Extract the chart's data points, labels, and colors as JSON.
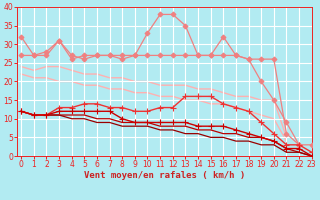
{
  "xlabel": "Vent moyen/en rafales ( km/h )",
  "background_color": "#b2ebf2",
  "grid_color": "#ffffff",
  "x": [
    0,
    1,
    2,
    3,
    4,
    5,
    6,
    7,
    8,
    9,
    10,
    11,
    12,
    13,
    14,
    15,
    16,
    17,
    18,
    19,
    20,
    21,
    22,
    23
  ],
  "lines": [
    {
      "y": [
        32,
        27,
        27,
        31,
        26,
        27,
        27,
        27,
        26,
        27,
        33,
        38,
        38,
        35,
        27,
        27,
        32,
        27,
        26,
        20,
        15,
        9,
        3,
        3
      ],
      "color": "#f08080",
      "lw": 0.9,
      "marker": "D",
      "ms": 2.5,
      "zorder": 3
    },
    {
      "y": [
        27,
        27,
        28,
        31,
        27,
        26,
        27,
        27,
        27,
        27,
        27,
        27,
        27,
        27,
        27,
        27,
        27,
        27,
        26,
        26,
        26,
        6,
        3,
        null
      ],
      "color": "#f08080",
      "lw": 0.9,
      "marker": "D",
      "ms": 2.5,
      "zorder": 3
    },
    {
      "y": [
        24,
        23,
        24,
        24,
        23,
        22,
        22,
        21,
        21,
        20,
        20,
        19,
        19,
        19,
        18,
        18,
        17,
        16,
        16,
        15,
        15,
        5,
        null,
        null
      ],
      "color": "#ffb0b0",
      "lw": 1.0,
      "marker": null,
      "ms": 0,
      "zorder": 1
    },
    {
      "y": [
        22,
        21,
        21,
        20,
        20,
        19,
        19,
        18,
        18,
        17,
        17,
        16,
        16,
        15,
        15,
        14,
        14,
        13,
        12,
        11,
        10,
        4,
        null,
        null
      ],
      "color": "#ffb0b0",
      "lw": 1.0,
      "marker": null,
      "ms": 0,
      "zorder": 1
    },
    {
      "y": [
        12,
        11,
        11,
        13,
        13,
        14,
        14,
        13,
        13,
        12,
        12,
        13,
        13,
        16,
        16,
        16,
        14,
        13,
        12,
        9,
        6,
        3,
        3,
        1
      ],
      "color": "#ee3333",
      "lw": 1.0,
      "marker": "+",
      "ms": 4,
      "zorder": 4
    },
    {
      "y": [
        12,
        11,
        11,
        12,
        12,
        12,
        12,
        12,
        10,
        9,
        9,
        9,
        9,
        9,
        8,
        8,
        8,
        7,
        6,
        5,
        4,
        2,
        2,
        0
      ],
      "color": "#cc0000",
      "lw": 1.0,
      "marker": "+",
      "ms": 4,
      "zorder": 4
    },
    {
      "y": [
        12,
        11,
        11,
        11,
        11,
        11,
        10,
        10,
        9,
        9,
        9,
        8,
        8,
        8,
        7,
        7,
        6,
        6,
        5,
        5,
        4,
        2,
        1,
        0
      ],
      "color": "#bb0000",
      "lw": 0.9,
      "marker": null,
      "ms": 0,
      "zorder": 2
    },
    {
      "y": [
        12,
        11,
        11,
        11,
        10,
        10,
        9,
        9,
        8,
        8,
        8,
        7,
        7,
        6,
        6,
        5,
        5,
        4,
        4,
        3,
        3,
        1,
        1,
        0
      ],
      "color": "#990000",
      "lw": 0.9,
      "marker": null,
      "ms": 0,
      "zorder": 2
    }
  ],
  "ylim": [
    0,
    40
  ],
  "xlim": [
    -0.3,
    23
  ],
  "yticks": [
    0,
    5,
    10,
    15,
    20,
    25,
    30,
    35,
    40
  ],
  "xticks": [
    0,
    1,
    2,
    3,
    4,
    5,
    6,
    7,
    8,
    9,
    10,
    11,
    12,
    13,
    14,
    15,
    16,
    17,
    18,
    19,
    20,
    21,
    22,
    23
  ],
  "tick_color": "#ee2222",
  "label_color": "#cc2222",
  "xlabel_fontsize": 6.5,
  "tick_fontsize": 5.5,
  "arrow_color": "#ee2222"
}
